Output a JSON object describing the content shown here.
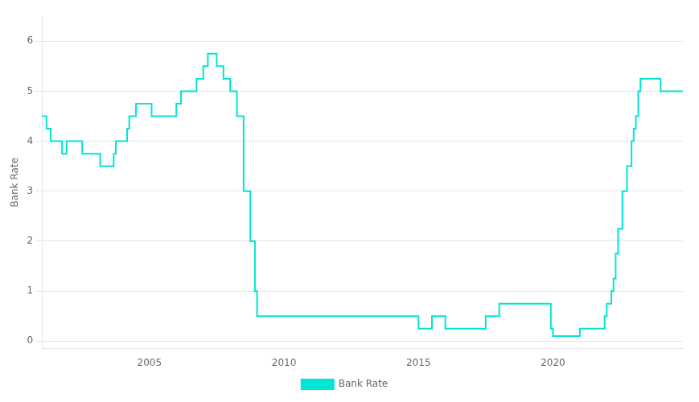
{
  "chart_data": {
    "type": "step",
    "y_label": "Bank Rate",
    "series": [
      {
        "name": "Bank Rate",
        "color": "#00e5d4",
        "x": [
          2001.0,
          2001.17,
          2001.33,
          2001.5,
          2001.75,
          2001.92,
          2002.0,
          2002.17,
          2002.5,
          2003.0,
          2003.17,
          2003.33,
          2003.5,
          2003.67,
          2003.75,
          2004.0,
          2004.17,
          2004.25,
          2004.5,
          2004.75,
          2005.0,
          2005.08,
          2005.5,
          2005.75,
          2006.0,
          2006.17,
          2006.5,
          2006.75,
          2007.0,
          2007.17,
          2007.25,
          2007.5,
          2007.67,
          2007.75,
          2008.0,
          2008.08,
          2008.25,
          2008.42,
          2008.5,
          2008.75,
          2008.83,
          2008.92,
          2009.0,
          2009.08,
          2009.5,
          2010.0,
          2011.0,
          2012.0,
          2013.0,
          2014.0,
          2014.5,
          2015.0,
          2015.5,
          2015.67,
          2016.0,
          2016.58,
          2017.0,
          2017.5,
          2017.75,
          2018.0,
          2018.33,
          2018.58,
          2018.75,
          2019.0,
          2019.92,
          2020.0,
          2020.08,
          2020.5,
          2021.0,
          2021.75,
          2021.92,
          2022.0,
          2022.17,
          2022.25,
          2022.33,
          2022.42,
          2022.5,
          2022.58,
          2022.67,
          2022.75,
          2022.83,
          2022.92,
          2023.0,
          2023.08,
          2023.17,
          2023.25,
          2023.42,
          2023.58,
          2023.67,
          2023.83,
          2024.0,
          2024.5,
          2024.83
        ],
        "values": [
          4.5,
          4.5,
          4.25,
          4.0,
          4.0,
          3.75,
          4.0,
          4.0,
          4.0,
          3.75,
          3.75,
          3.5,
          3.5,
          3.5,
          3.75,
          4.0,
          4.0,
          4.25,
          4.5,
          4.75,
          4.75,
          4.75,
          4.5,
          4.5,
          4.5,
          4.75,
          5.0,
          5.0,
          5.25,
          5.5,
          5.75,
          5.75,
          5.5,
          5.5,
          5.25,
          5.0,
          5.0,
          4.5,
          4.5,
          3.0,
          2.0,
          2.0,
          1.0,
          0.5,
          0.5,
          0.5,
          0.5,
          0.5,
          0.5,
          0.5,
          0.5,
          0.5,
          0.25,
          0.5,
          0.5,
          0.25,
          0.25,
          0.25,
          0.5,
          0.5,
          0.75,
          0.75,
          0.75,
          0.75,
          0.75,
          0.25,
          0.1,
          0.1,
          0.1,
          0.25,
          0.25,
          0.5,
          0.75,
          1.0,
          1.25,
          1.75,
          2.25,
          2.25,
          3.0,
          3.0,
          3.5,
          3.5,
          4.0,
          4.25,
          4.5,
          5.0,
          5.25,
          5.25,
          5.25,
          5.25,
          5.25,
          5.0,
          5.0
        ]
      }
    ],
    "xlim": [
      2001.0,
      2024.83
    ],
    "xticks": [
      2005,
      2010,
      2015,
      2020
    ],
    "ylim": [
      -0.15,
      6.5
    ],
    "yticks": [
      0,
      1,
      2,
      3,
      4,
      5,
      6
    ],
    "grid": "y",
    "legend": "bottom"
  }
}
